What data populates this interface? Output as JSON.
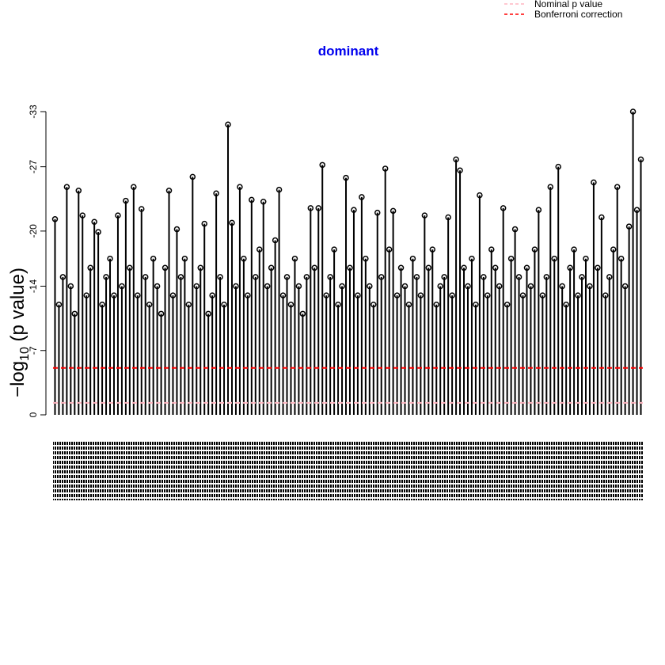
{
  "chart_data": {
    "type": "spike",
    "title": "dominant",
    "title_color": "#0000ee",
    "ylabel": "−log",
    "ylabel_sub": "10",
    "ylabel_rest": " (p value)",
    "ylim": [
      0,
      -33
    ],
    "yticks": [
      0,
      -7,
      -14,
      -20,
      -27,
      -33
    ],
    "color": "#000000",
    "hlines": [
      {
        "name": "Nominal p value",
        "value": -1.3,
        "color": "#ffb6c1"
      },
      {
        "name": "Bonferroni correction",
        "value": -5.1,
        "color": "#ff0000"
      }
    ],
    "values": [
      -21.3,
      -12,
      -15,
      -24.8,
      -14,
      -11,
      -24.4,
      -21.7,
      -13,
      -16,
      -21,
      -19.9,
      -12,
      -15,
      -17,
      -13,
      -21.7,
      -14,
      -23.3,
      -16,
      -24.8,
      -13,
      -22.4,
      -15,
      -12,
      -17,
      -14,
      -11,
      -16,
      -24.4,
      -13,
      -20.2,
      -15,
      -17,
      -12,
      -25.9,
      -14,
      -16,
      -20.8,
      -11,
      -13,
      -24.1,
      -15,
      -12,
      -31.6,
      -20.9,
      -14,
      -24.8,
      -17,
      -13,
      -23.4,
      -15,
      -18,
      -23.2,
      -14,
      -16,
      -19,
      -24.5,
      -13,
      -15,
      -12,
      -17,
      -14,
      -11,
      -15,
      -22.5,
      -16,
      -22.5,
      -27.2,
      -13,
      -15,
      -18,
      -12,
      -14,
      -25.8,
      -16,
      -22.3,
      -13,
      -23.7,
      -17,
      -14,
      -12,
      -22,
      -15,
      -26.8,
      -18,
      -22.2,
      -13,
      -16,
      -14,
      -12,
      -17,
      -15,
      -13,
      -21.7,
      -16,
      -18,
      -12,
      -14,
      -15,
      -21.5,
      -13,
      -27.8,
      -26.6,
      -16,
      -14,
      -17,
      -12,
      -23.9,
      -15,
      -13,
      -18,
      -16,
      -14,
      -22.5,
      -12,
      -17,
      -20.2,
      -15,
      -13,
      -16,
      -14,
      -18,
      -22.3,
      -13,
      -15,
      -24.8,
      -17,
      -27,
      -14,
      -12,
      -16,
      -18,
      -13,
      -15,
      -17,
      -14,
      -25.3,
      -16,
      -21.5,
      -13,
      -15,
      -18,
      -24.8,
      -17,
      -14,
      -20.5,
      -33,
      -22.3,
      -27.8
    ]
  }
}
